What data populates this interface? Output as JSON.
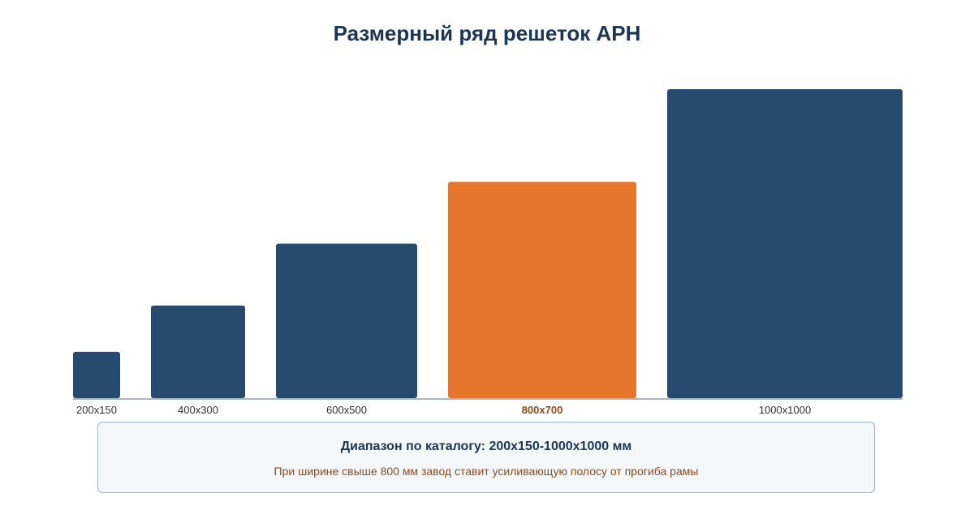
{
  "title": "Размерный ряд решеток АРН",
  "chart_data": {
    "type": "bar",
    "title": "Размерный ряд решеток АРН",
    "categories": [
      "200x150",
      "400x300",
      "600x500",
      "800x700",
      "1000x1000"
    ],
    "widths_mm": [
      200,
      400,
      600,
      800,
      1000
    ],
    "heights_mm": [
      150,
      300,
      500,
      700,
      1000
    ],
    "highlighted": "800x700",
    "colors": {
      "default": "#274b6e",
      "highlight": "#e5742d",
      "axis": "#a9b8c8",
      "label": "#333333",
      "highlight_label": "#8b4a1c"
    }
  },
  "info": {
    "title": "Диапазон по каталогу: 200x150-1000x1000 мм",
    "note": "При ширине свыше 800 мм завод ставит усиливающую полосу от прогиба рамы"
  }
}
